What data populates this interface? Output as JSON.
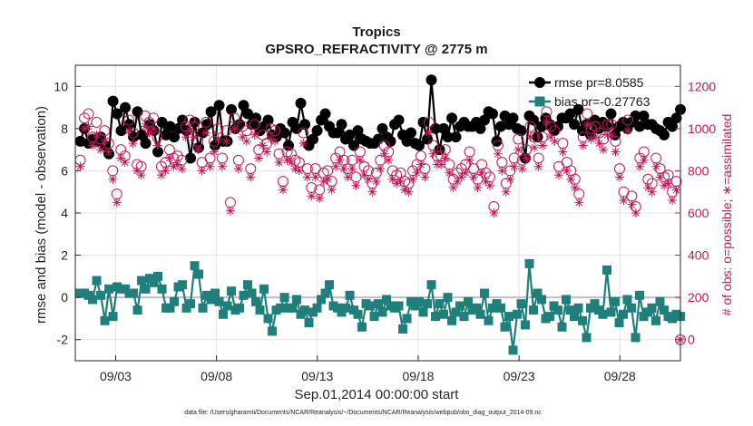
{
  "chart_data": {
    "type": "line",
    "title": "Tropics",
    "subtitle": "GPSRO_REFRACTIVITY @ 2775 m",
    "xlabel": "Sep.01,2014 00:00:00 start",
    "ylabel": "rmse and bias (model - observation)",
    "ylabel_right": "# of obs: o=possible; ∗=assimilated",
    "footnote": "data file: /Users/gharamti/Documents/NCAR/Reanalysis/~/Documents/NCAR/Reanalysis/webpub/obs_diag_output_2014-09.nc",
    "x_ticks": [
      {
        "day": 3,
        "label": "09/03"
      },
      {
        "day": 8,
        "label": "09/08"
      },
      {
        "day": 13,
        "label": "09/13"
      },
      {
        "day": 18,
        "label": "09/18"
      },
      {
        "day": 23,
        "label": "09/23"
      },
      {
        "day": 28,
        "label": "09/28"
      }
    ],
    "xlim": [
      1,
      31
    ],
    "ylim": [
      -3,
      11
    ],
    "y_ticks": [
      "-2",
      "0",
      "2",
      "4",
      "6",
      "8",
      "10"
    ],
    "ylim_right": [
      -100,
      1300
    ],
    "y_ticks_right": [
      "0",
      "200",
      "400",
      "600",
      "800",
      "1000",
      "1200"
    ],
    "grid": true,
    "legend_position": "top-right",
    "series": [
      {
        "name": "rmse pr=8.0585",
        "axis": "left",
        "color": "#000000",
        "marker": "circle",
        "values": [
          7.4,
          8.0,
          7.3,
          7.5,
          7.4,
          7.6,
          7.2,
          6.8,
          9.3,
          8.7,
          7.9,
          9.0,
          8.2,
          7.6,
          8.8,
          7.7,
          7.3,
          8.2,
          7.9,
          6.9,
          8.3,
          7.7,
          8.1,
          7.6,
          8.0,
          8.4,
          7.9,
          6.6,
          8.3,
          7.1,
          7.8,
          8.2,
          8.8,
          7.2,
          9.1,
          7.4,
          7.4,
          8.9,
          8.0,
          8.2,
          9.1,
          8.7,
          8.2,
          8.5,
          7.9,
          8.1,
          8.4,
          7.7,
          7.6,
          8.0,
          7.8,
          7.2,
          8.3,
          8.0,
          9.2,
          8.2,
          7.2,
          7.5,
          7.9,
          8.4,
          8.7,
          8.1,
          7.8,
          7.8,
          8.2,
          7.5,
          7.7,
          7.2,
          7.9,
          7.5,
          7.4,
          7.3,
          7.3,
          7.5,
          8.0,
          7.6,
          7.4,
          8.2,
          8.4,
          7.7,
          7.4,
          7.8,
          7.3,
          7.2,
          8.3,
          7.5,
          10.3,
          8.0,
          7.0,
          8.0,
          7.6,
          8.5,
          7.6,
          8.1,
          8.3,
          8.1,
          8.1,
          8.3,
          8.0,
          8.4,
          8.8,
          8.7,
          7.4,
          8.1,
          8.6,
          8.2,
          8.5,
          8.0,
          7.9,
          6.6,
          8.6,
          8.4,
          7.6,
          8.1,
          8.5,
          8.2,
          7.9,
          8.1,
          8.5,
          8.5,
          8.7,
          8.2,
          8.9,
          7.9,
          8.2,
          7.7,
          8.4,
          8.0,
          8.3,
          8.1,
          8.7,
          7.7,
          8.1,
          8.3,
          8.0,
          8.3,
          8.6,
          8.1,
          8.6,
          8.2,
          8.2,
          8.0,
          7.9,
          7.7,
          8.3,
          8.1,
          8.5,
          8.9
        ]
      },
      {
        "name": "bias pr=-0.27763",
        "axis": "left",
        "color": "#1f7f7a",
        "marker": "square",
        "values": [
          0.2,
          0.2,
          0.1,
          -0.1,
          0.8,
          0.1,
          -1.1,
          0.4,
          -0.9,
          0.5,
          0.4,
          0.4,
          0.2,
          0.2,
          -0.6,
          0.8,
          0.4,
          0.9,
          0.7,
          1.0,
          0.4,
          -0.5,
          -0.5,
          -0.2,
          0.5,
          0.6,
          -0.5,
          -0.3,
          1.5,
          1.1,
          -0.5,
          0.1,
          -0.1,
          0.2,
          -0.2,
          -0.8,
          -0.4,
          0.3,
          -0.6,
          -0.5,
          0.1,
          0.6,
          0.2,
          -0.2,
          -0.6,
          0.4,
          -1.0,
          -1.6,
          -0.6,
          -0.5,
          0.0,
          -0.5,
          -0.5,
          -0.1,
          -0.8,
          -0.6,
          -1.2,
          -0.7,
          -0.5,
          -0.1,
          0.2,
          0.6,
          -0.4,
          -0.5,
          -0.7,
          -0.5,
          0.1,
          -0.6,
          -0.8,
          -1.4,
          -0.3,
          -0.4,
          -0.9,
          -0.3,
          -0.7,
          -0.1,
          -0.4,
          -0.5,
          -0.4,
          -1.5,
          -1.0,
          -0.2,
          -0.4,
          -0.2,
          -0.7,
          -0.3,
          0.6,
          -0.9,
          -0.3,
          -0.8,
          0.0,
          -1.1,
          -0.7,
          -0.4,
          -0.9,
          -0.2,
          -0.6,
          -0.5,
          -0.8,
          0.2,
          -1.1,
          -0.5,
          -0.3,
          -0.5,
          -1.4,
          -0.9,
          -2.5,
          -0.8,
          -0.3,
          -1.3,
          1.6,
          -0.6,
          0.2,
          -0.1,
          -1.0,
          -0.9,
          -0.4,
          -0.6,
          -1.4,
          -0.1,
          -0.6,
          -0.9,
          -0.5,
          -1.1,
          -1.9,
          -0.5,
          -0.3,
          -0.6,
          -0.8,
          1.3,
          -0.7,
          -0.2,
          -1.2,
          -0.8,
          -0.1,
          -0.5,
          -1.9,
          0.1,
          -0.9,
          -0.7,
          -0.5,
          -1.1,
          -0.2,
          -0.6,
          -0.9,
          -1.0,
          -0.8,
          -0.9
        ]
      },
      {
        "name": "possible",
        "axis": "right",
        "color": "#c2185b",
        "marker": "open-circle",
        "values": [
          850,
          1050,
          1070,
          960,
          1030,
          950,
          990,
          930,
          800,
          690,
          900,
          870,
          1040,
          980,
          830,
          820,
          1060,
          1030,
          1050,
          960,
          820,
          840,
          900,
          860,
          870,
          850,
          1010,
          1040,
          1010,
          940,
          840,
          1030,
          860,
          940,
          1000,
          860,
          990,
          650,
          1050,
          850,
          1010,
          990,
          810,
          1020,
          900,
          970,
          930,
          1000,
          990,
          880,
          750,
          890,
          880,
          850,
          840,
          980,
          810,
          720,
          810,
          710,
          790,
          800,
          750,
          860,
          890,
          850,
          810,
          850,
          770,
          890,
          820,
          800,
          740,
          790,
          850,
          920,
          890,
          800,
          780,
          790,
          750,
          740,
          800,
          830,
          870,
          810,
          1030,
          920,
          870,
          870,
          900,
          830,
          760,
          790,
          810,
          830,
          890,
          810,
          760,
          830,
          790,
          770,
          630,
          920,
          840,
          740,
          800,
          860,
          950,
          850,
          900,
          1010,
          960,
          860,
          960,
          1080,
          1010,
          990,
          820,
          930,
          840,
          800,
          760,
          690,
          960,
          1070,
          1000,
          1010,
          980,
          950,
          1020,
          1020,
          940,
          810,
          700,
          1040,
          680,
          630,
          860,
          890,
          760,
          740,
          860,
          810,
          770,
          780,
          700,
          750,
          0
        ]
      },
      {
        "name": "assimilated",
        "axis": "right",
        "color": "#c2185b",
        "marker": "asterisk",
        "values": [
          820,
          1000,
          1010,
          920,
          970,
          900,
          940,
          890,
          760,
          650,
          860,
          840,
          990,
          930,
          800,
          780,
          1010,
          980,
          1000,
          920,
          780,
          800,
          860,
          820,
          830,
          810,
          960,
          990,
          960,
          900,
          800,
          980,
          820,
          890,
          950,
          820,
          940,
          610,
          1000,
          810,
          960,
          940,
          770,
          970,
          860,
          920,
          890,
          950,
          940,
          840,
          710,
          850,
          840,
          810,
          800,
          930,
          770,
          680,
          770,
          670,
          750,
          760,
          710,
          820,
          850,
          810,
          770,
          810,
          730,
          850,
          780,
          760,
          700,
          750,
          810,
          880,
          850,
          760,
          740,
          750,
          710,
          700,
          760,
          790,
          830,
          770,
          980,
          880,
          830,
          830,
          860,
          790,
          720,
          750,
          770,
          790,
          850,
          770,
          720,
          790,
          750,
          730,
          600,
          880,
          800,
          700,
          760,
          820,
          900,
          810,
          860,
          960,
          910,
          820,
          920,
          1030,
          960,
          940,
          780,
          890,
          800,
          760,
          720,
          650,
          920,
          1020,
          950,
          960,
          930,
          900,
          970,
          970,
          890,
          770,
          660,
          990,
          640,
          600,
          820,
          850,
          720,
          700,
          820,
          770,
          730,
          740,
          660,
          710,
          0
        ]
      }
    ],
    "legend": [
      "rmse pr=8.0585",
      "bias pr=-0.27763"
    ]
  }
}
